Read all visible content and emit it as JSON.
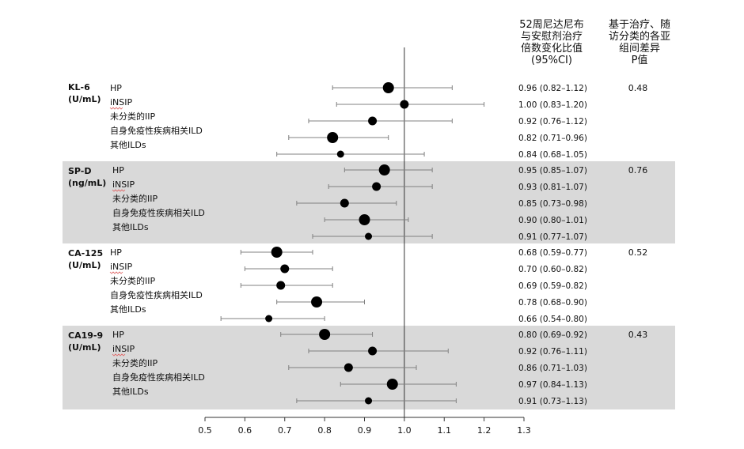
{
  "header": {
    "ratio_col": [
      "52周尼达尼布",
      "与安慰剂治疗",
      "倍数变化比值",
      "(95%CI)"
    ],
    "p_col": [
      "基于治疗、随",
      "访分类的各亚",
      "组间差异",
      "P值"
    ]
  },
  "colors": {
    "band": "#d9d9d9",
    "marker": "#000000",
    "ci_line": "#808080",
    "axis": "#333333",
    "squiggle": "#e06060"
  },
  "chart_data": {
    "type": "forest",
    "xlim": [
      0.5,
      1.3
    ],
    "xticks": [
      "0.5",
      "0.6",
      "0.7",
      "0.8",
      "0.9",
      "1.0",
      "1.1",
      "1.2",
      "1.3"
    ],
    "reference_line": 1.0,
    "groups": [
      {
        "name": [
          "KL-6",
          "(U/mL)"
        ],
        "p_value": "0.48",
        "shaded": false,
        "rows": [
          {
            "label": "HP",
            "estimate": 0.96,
            "lower": 0.82,
            "upper": 1.12,
            "ci_text": "0.96  (0.82–1.12)",
            "size": "large"
          },
          {
            "label": "iNSIP",
            "estimate": 1.0,
            "lower": 0.83,
            "upper": 1.2,
            "ci_text": "1.00  (0.83–1.20)",
            "size": "medium"
          },
          {
            "label": "未分类的IIP",
            "estimate": 0.92,
            "lower": 0.76,
            "upper": 1.12,
            "ci_text": "0.92  (0.76–1.12)",
            "size": "medium"
          },
          {
            "label": "自身免疫性疾病相关ILD",
            "estimate": 0.82,
            "lower": 0.71,
            "upper": 0.96,
            "ci_text": "0.82  (0.71–0.96)",
            "size": "large"
          },
          {
            "label": "其他ILDs",
            "estimate": 0.84,
            "lower": 0.68,
            "upper": 1.05,
            "ci_text": "0.84  (0.68–1.05)",
            "size": "small"
          }
        ]
      },
      {
        "name": [
          "SP-D",
          "(ng/mL)"
        ],
        "p_value": "0.76",
        "shaded": true,
        "rows": [
          {
            "label": "HP",
            "estimate": 0.95,
            "lower": 0.85,
            "upper": 1.07,
            "ci_text": "0.95  (0.85–1.07)",
            "size": "large"
          },
          {
            "label": "iNSIP",
            "estimate": 0.93,
            "lower": 0.81,
            "upper": 1.07,
            "ci_text": "0.93  (0.81–1.07)",
            "size": "medium"
          },
          {
            "label": "未分类的IIP",
            "estimate": 0.85,
            "lower": 0.73,
            "upper": 0.98,
            "ci_text": "0.85  (0.73–0.98)",
            "size": "medium"
          },
          {
            "label": "自身免疫性疾病相关ILD",
            "estimate": 0.9,
            "lower": 0.8,
            "upper": 1.01,
            "ci_text": "0.90  (0.80–1.01)",
            "size": "large"
          },
          {
            "label": "其他ILDs",
            "estimate": 0.91,
            "lower": 0.77,
            "upper": 1.07,
            "ci_text": "0.91  (0.77–1.07)",
            "size": "small"
          }
        ]
      },
      {
        "name": [
          "CA-125",
          "(U/mL)"
        ],
        "p_value": "0.52",
        "shaded": false,
        "rows": [
          {
            "label": "HP",
            "estimate": 0.68,
            "lower": 0.59,
            "upper": 0.77,
            "ci_text": "0.68  (0.59–0.77)",
            "size": "large"
          },
          {
            "label": "iNSIP",
            "estimate": 0.7,
            "lower": 0.6,
            "upper": 0.82,
            "ci_text": "0.70  (0.60–0.82)",
            "size": "medium"
          },
          {
            "label": "未分类的IIP",
            "estimate": 0.69,
            "lower": 0.59,
            "upper": 0.82,
            "ci_text": "0.69  (0.59–0.82)",
            "size": "medium"
          },
          {
            "label": "自身免疫性疾病相关ILD",
            "estimate": 0.78,
            "lower": 0.68,
            "upper": 0.9,
            "ci_text": "0.78  (0.68–0.90)",
            "size": "large"
          },
          {
            "label": "其他ILDs",
            "estimate": 0.66,
            "lower": 0.54,
            "upper": 0.8,
            "ci_text": "0.66  (0.54–0.80)",
            "size": "small"
          }
        ]
      },
      {
        "name": [
          "CA19-9",
          "(U/mL)"
        ],
        "p_value": "0.43",
        "shaded": true,
        "rows": [
          {
            "label": "HP",
            "estimate": 0.8,
            "lower": 0.69,
            "upper": 0.92,
            "ci_text": "0.80  (0.69–0.92)",
            "size": "large"
          },
          {
            "label": "iNSIP",
            "estimate": 0.92,
            "lower": 0.76,
            "upper": 1.11,
            "ci_text": "0.92  (0.76–1.11)",
            "size": "medium"
          },
          {
            "label": "未分类的IIP",
            "estimate": 0.86,
            "lower": 0.71,
            "upper": 1.03,
            "ci_text": "0.86  (0.71–1.03)",
            "size": "medium"
          },
          {
            "label": "自身免疫性疾病相关ILD",
            "estimate": 0.97,
            "lower": 0.84,
            "upper": 1.13,
            "ci_text": "0.97  (0.84–1.13)",
            "size": "large"
          },
          {
            "label": "其他ILDs",
            "estimate": 0.91,
            "lower": 0.73,
            "upper": 1.13,
            "ci_text": "0.91  (0.73–1.13)",
            "size": "small"
          }
        ]
      }
    ]
  }
}
